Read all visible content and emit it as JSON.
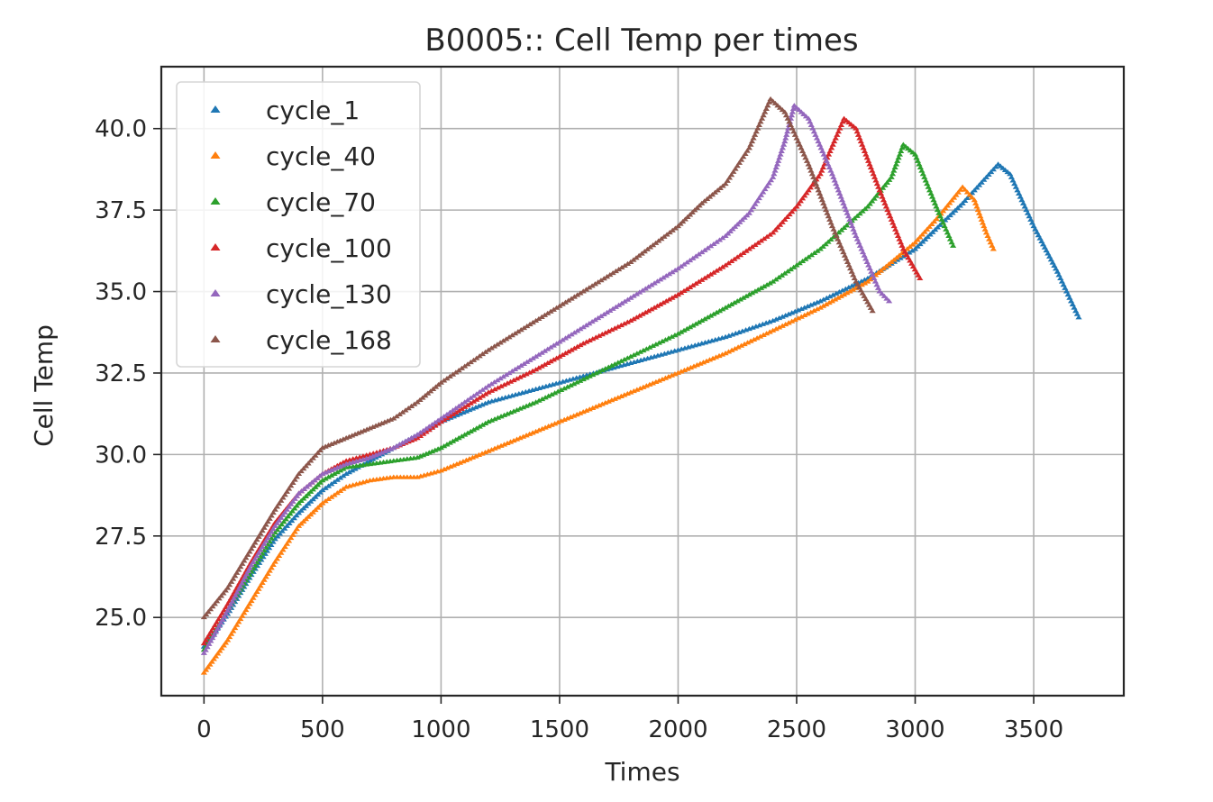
{
  "chart_data": {
    "type": "scatter",
    "title": "B0005:: Cell Temp per times",
    "xlabel": "Times",
    "ylabel": "Cell Temp",
    "xlim": [
      -180,
      3880
    ],
    "ylim": [
      22.6,
      41.9
    ],
    "xticks": [
      0,
      500,
      1000,
      1500,
      2000,
      2500,
      3000,
      3500
    ],
    "yticks": [
      25.0,
      27.5,
      30.0,
      32.5,
      35.0,
      37.5,
      40.0
    ],
    "xtick_labels": [
      "0",
      "500",
      "1000",
      "1500",
      "2000",
      "2500",
      "3000",
      "3500"
    ],
    "ytick_labels": [
      "25.0",
      "27.5",
      "30.0",
      "32.5",
      "35.0",
      "37.5",
      "40.0"
    ],
    "grid": true,
    "marker": "triangle",
    "legend_position": "upper-left",
    "series": [
      {
        "name": "cycle_1",
        "color": "#1f77b4",
        "points": [
          [
            0,
            24.1
          ],
          [
            100,
            25.1
          ],
          [
            200,
            26.3
          ],
          [
            300,
            27.4
          ],
          [
            400,
            28.2
          ],
          [
            500,
            28.9
          ],
          [
            600,
            29.4
          ],
          [
            700,
            29.8
          ],
          [
            800,
            30.2
          ],
          [
            900,
            30.6
          ],
          [
            1000,
            31.0
          ],
          [
            1200,
            31.6
          ],
          [
            1400,
            32.0
          ],
          [
            1600,
            32.4
          ],
          [
            1800,
            32.8
          ],
          [
            2000,
            33.2
          ],
          [
            2200,
            33.6
          ],
          [
            2400,
            34.1
          ],
          [
            2600,
            34.7
          ],
          [
            2800,
            35.4
          ],
          [
            3000,
            36.3
          ],
          [
            3200,
            37.7
          ],
          [
            3350,
            38.9
          ],
          [
            3400,
            38.6
          ],
          [
            3500,
            37.0
          ],
          [
            3600,
            35.6
          ],
          [
            3690,
            34.2
          ]
        ]
      },
      {
        "name": "cycle_40",
        "color": "#ff7f0e",
        "points": [
          [
            0,
            23.3
          ],
          [
            100,
            24.3
          ],
          [
            200,
            25.5
          ],
          [
            300,
            26.7
          ],
          [
            400,
            27.8
          ],
          [
            500,
            28.5
          ],
          [
            600,
            29.0
          ],
          [
            700,
            29.2
          ],
          [
            800,
            29.3
          ],
          [
            900,
            29.3
          ],
          [
            1000,
            29.5
          ],
          [
            1200,
            30.1
          ],
          [
            1400,
            30.7
          ],
          [
            1600,
            31.3
          ],
          [
            1800,
            31.9
          ],
          [
            2000,
            32.5
          ],
          [
            2200,
            33.1
          ],
          [
            2400,
            33.8
          ],
          [
            2600,
            34.5
          ],
          [
            2800,
            35.3
          ],
          [
            3000,
            36.5
          ],
          [
            3100,
            37.3
          ],
          [
            3200,
            38.2
          ],
          [
            3250,
            37.8
          ],
          [
            3300,
            36.8
          ],
          [
            3330,
            36.3
          ]
        ]
      },
      {
        "name": "cycle_70",
        "color": "#2ca02c",
        "points": [
          [
            0,
            24.0
          ],
          [
            100,
            25.2
          ],
          [
            200,
            26.4
          ],
          [
            300,
            27.6
          ],
          [
            400,
            28.5
          ],
          [
            500,
            29.2
          ],
          [
            600,
            29.6
          ],
          [
            700,
            29.7
          ],
          [
            800,
            29.8
          ],
          [
            900,
            29.9
          ],
          [
            1000,
            30.2
          ],
          [
            1200,
            31.0
          ],
          [
            1400,
            31.6
          ],
          [
            1600,
            32.3
          ],
          [
            1800,
            33.0
          ],
          [
            2000,
            33.7
          ],
          [
            2200,
            34.5
          ],
          [
            2400,
            35.3
          ],
          [
            2600,
            36.3
          ],
          [
            2800,
            37.6
          ],
          [
            2900,
            38.5
          ],
          [
            2950,
            39.5
          ],
          [
            3000,
            39.2
          ],
          [
            3100,
            37.4
          ],
          [
            3160,
            36.4
          ]
        ]
      },
      {
        "name": "cycle_100",
        "color": "#d62728",
        "points": [
          [
            0,
            24.2
          ],
          [
            100,
            25.4
          ],
          [
            200,
            26.7
          ],
          [
            300,
            27.9
          ],
          [
            400,
            28.8
          ],
          [
            500,
            29.4
          ],
          [
            600,
            29.8
          ],
          [
            700,
            30.0
          ],
          [
            800,
            30.2
          ],
          [
            900,
            30.5
          ],
          [
            1000,
            31.0
          ],
          [
            1200,
            31.9
          ],
          [
            1400,
            32.6
          ],
          [
            1600,
            33.4
          ],
          [
            1800,
            34.1
          ],
          [
            2000,
            34.9
          ],
          [
            2200,
            35.8
          ],
          [
            2400,
            36.8
          ],
          [
            2500,
            37.6
          ],
          [
            2600,
            38.6
          ],
          [
            2700,
            40.3
          ],
          [
            2750,
            40.0
          ],
          [
            2850,
            38.1
          ],
          [
            2950,
            36.3
          ],
          [
            3020,
            35.4
          ]
        ]
      },
      {
        "name": "cycle_130",
        "color": "#9467bd",
        "points": [
          [
            0,
            23.9
          ],
          [
            100,
            25.2
          ],
          [
            200,
            26.6
          ],
          [
            300,
            27.8
          ],
          [
            400,
            28.8
          ],
          [
            500,
            29.4
          ],
          [
            600,
            29.7
          ],
          [
            700,
            29.9
          ],
          [
            800,
            30.2
          ],
          [
            900,
            30.6
          ],
          [
            1000,
            31.1
          ],
          [
            1200,
            32.1
          ],
          [
            1400,
            33.0
          ],
          [
            1600,
            33.9
          ],
          [
            1800,
            34.8
          ],
          [
            2000,
            35.7
          ],
          [
            2200,
            36.7
          ],
          [
            2300,
            37.4
          ],
          [
            2400,
            38.5
          ],
          [
            2450,
            39.6
          ],
          [
            2490,
            40.7
          ],
          [
            2550,
            40.3
          ],
          [
            2650,
            38.6
          ],
          [
            2750,
            36.7
          ],
          [
            2850,
            35.0
          ],
          [
            2890,
            34.7
          ]
        ]
      },
      {
        "name": "cycle_168",
        "color": "#8c564b",
        "points": [
          [
            0,
            25.0
          ],
          [
            100,
            25.9
          ],
          [
            200,
            27.1
          ],
          [
            300,
            28.3
          ],
          [
            400,
            29.4
          ],
          [
            500,
            30.2
          ],
          [
            600,
            30.5
          ],
          [
            700,
            30.8
          ],
          [
            800,
            31.1
          ],
          [
            900,
            31.6
          ],
          [
            1000,
            32.2
          ],
          [
            1200,
            33.2
          ],
          [
            1400,
            34.1
          ],
          [
            1600,
            35.0
          ],
          [
            1800,
            35.9
          ],
          [
            2000,
            37.0
          ],
          [
            2100,
            37.7
          ],
          [
            2200,
            38.3
          ],
          [
            2300,
            39.4
          ],
          [
            2390,
            40.9
          ],
          [
            2450,
            40.5
          ],
          [
            2550,
            38.9
          ],
          [
            2650,
            37.0
          ],
          [
            2750,
            35.3
          ],
          [
            2820,
            34.4
          ]
        ]
      }
    ]
  }
}
